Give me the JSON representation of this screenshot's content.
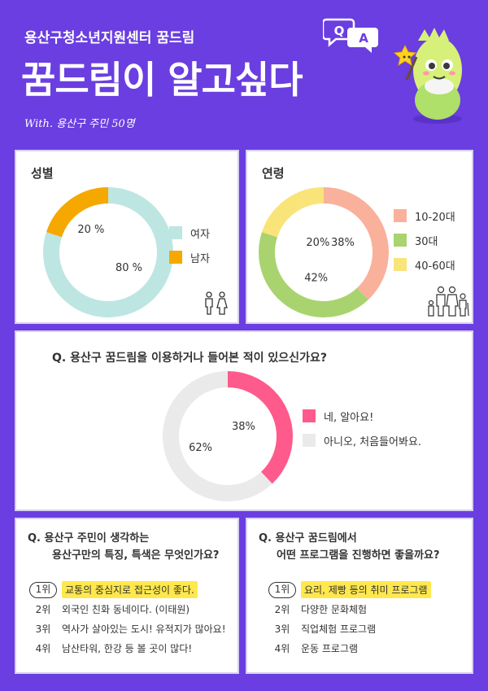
{
  "header": {
    "subtitle": "용산구청소년지원센터 꿈드림",
    "title": "꿈드림이 알고싶다",
    "with": "With. 용산구 주민 50명",
    "qa_q": "Q",
    "qa_a": "A"
  },
  "colors": {
    "bg": "#6a3ee0",
    "mint": "#bde6e2",
    "orange": "#f5a800",
    "salmon": "#f9b19c",
    "green": "#a9d36f",
    "yellow": "#f9e47a",
    "pink": "#ff5a8c",
    "gray": "#eaeaea",
    "highlight": "#ffe84d"
  },
  "chart_data": [
    {
      "type": "pie",
      "title": "성별",
      "categories": [
        "여자",
        "남자"
      ],
      "values": [
        80,
        20
      ],
      "labels": [
        "80 %",
        "20 %"
      ],
      "colors": [
        "#bde6e2",
        "#f5a800"
      ]
    },
    {
      "type": "pie",
      "title": "연령",
      "categories": [
        "10-20대",
        "30대",
        "40-60대"
      ],
      "values": [
        38,
        42,
        20
      ],
      "labels": [
        "38%",
        "42%",
        "20%"
      ],
      "colors": [
        "#f9b19c",
        "#a9d36f",
        "#f9e47a"
      ]
    },
    {
      "type": "pie",
      "title": "Q. 용산구 꿈드림을 이용하거나 들어본 적이 있으신가요?",
      "categories": [
        "네, 알아요!",
        "아니오, 처음들어봐요."
      ],
      "values": [
        38,
        62
      ],
      "labels": [
        "38%",
        "62%"
      ],
      "colors": [
        "#ff5a8c",
        "#eaeaea"
      ]
    }
  ],
  "q2": {
    "line1": "Q. 용산구 주민이 생각하는",
    "line2": "용산구만의 특징, 특색은 무엇인가요?",
    "ranks": [
      {
        "no": "1위",
        "text": "교통의 중심지로 접근성이 좋다."
      },
      {
        "no": "2위",
        "text": "외국인 친화 동네이다. (이태원)"
      },
      {
        "no": "3위",
        "text": "역사가 살아있는 도시! 유적지가 많아요!"
      },
      {
        "no": "4위",
        "text": "남산타워, 한강 등 볼 곳이 많다!"
      }
    ]
  },
  "q3": {
    "line1": "Q. 용산구 꿈드림에서",
    "line2": "어떤 프로그램을 진행하면 좋을까요?",
    "ranks": [
      {
        "no": "1위",
        "text": "요리, 제빵 등의 취미 프로그램"
      },
      {
        "no": "2위",
        "text": "다양한 문화체험"
      },
      {
        "no": "3위",
        "text": "직업체험 프로그램"
      },
      {
        "no": "4위",
        "text": "운동 프로그램"
      }
    ]
  },
  "icons": {
    "gender": "people-icon",
    "age": "family-icon",
    "mascot": "mascot-icon"
  }
}
